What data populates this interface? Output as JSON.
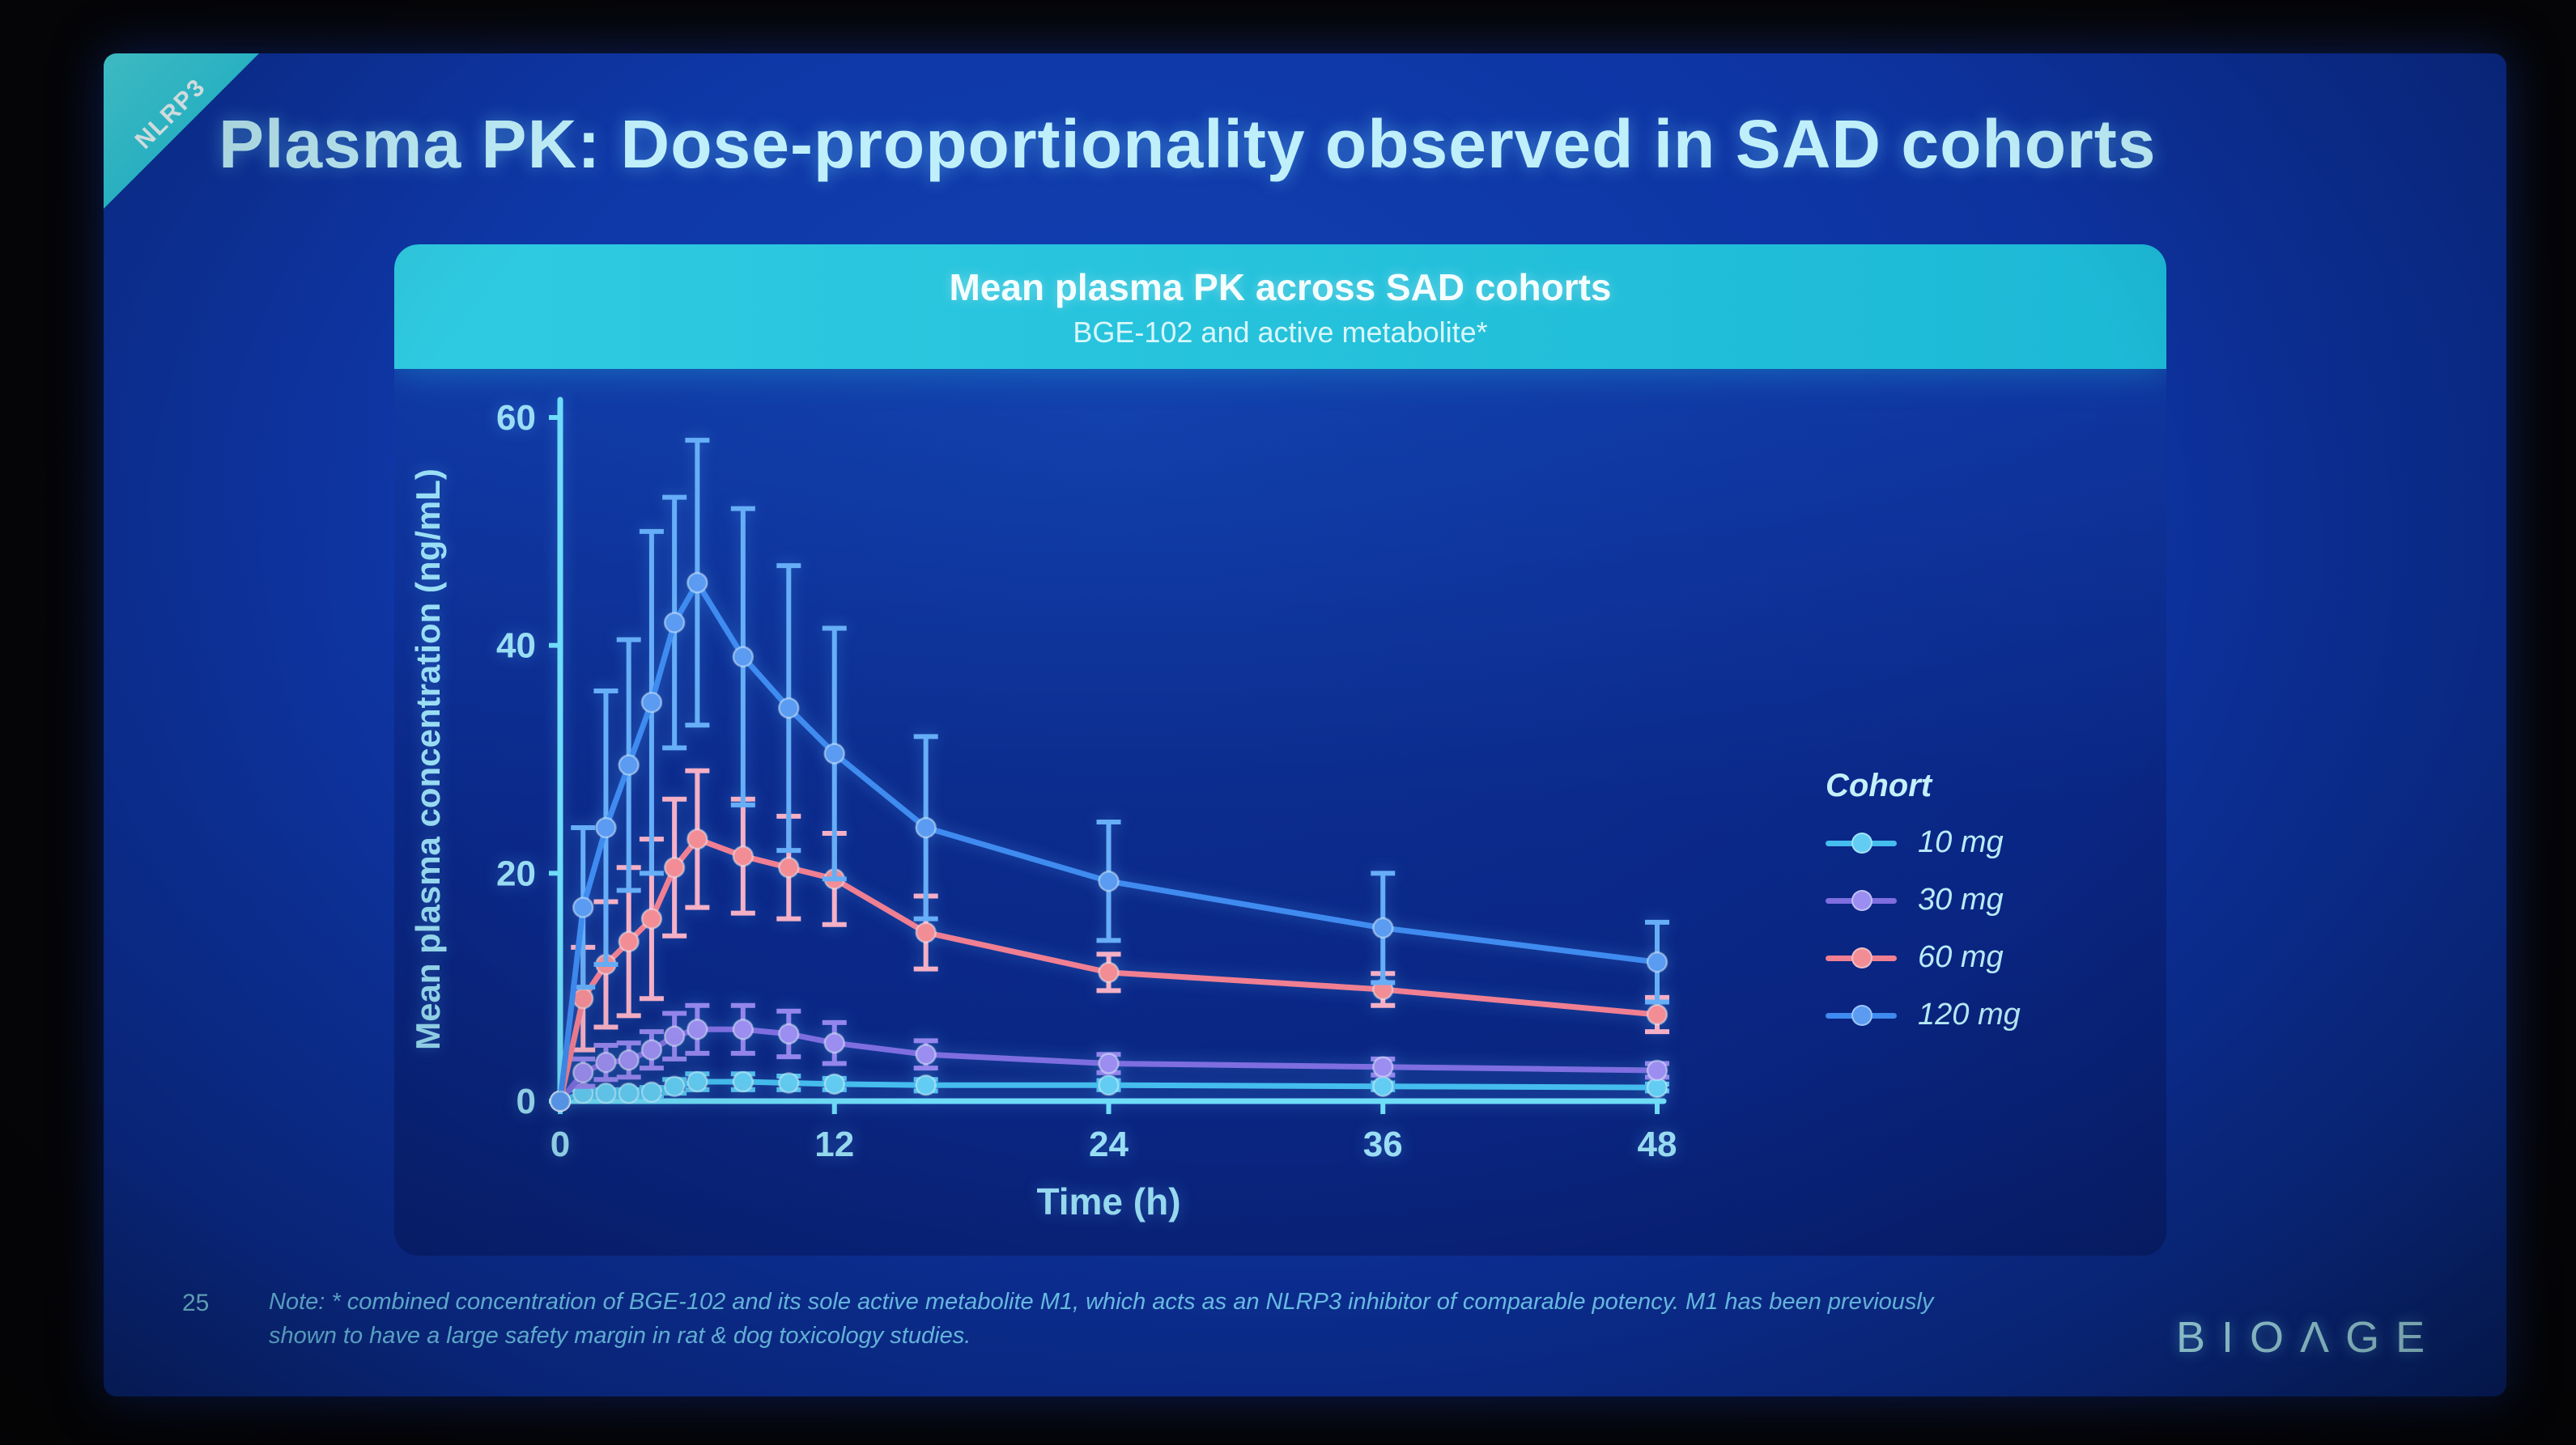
{
  "ribbon": {
    "label": "NLRP3"
  },
  "slide": {
    "title": "Plasma PK: Dose-proportionality observed in SAD cohorts",
    "page_number": "25"
  },
  "card": {
    "title": "Mean plasma PK across SAD cohorts",
    "subtitle": "BGE-102 and active metabolite*"
  },
  "footer": {
    "note_line1": "Note: * combined concentration of BGE-102 and its sole active metabolite M1, which acts as an NLRP3 inhibitor of comparable potency. M1 has been previously",
    "note_line2": "shown to have a large safety margin in rat & dog toxicology studies.",
    "logo_text": "BIOΛGE"
  },
  "chart_data": {
    "type": "line",
    "title": "Mean plasma PK across SAD cohorts",
    "subtitle": "BGE-102 and active metabolite*",
    "xlabel": "Time (h)",
    "ylabel": "Mean plasma concentration (ng/mL)",
    "xlim": [
      0,
      48
    ],
    "ylim": [
      0,
      60
    ],
    "xticks": [
      0,
      12,
      24,
      36,
      48
    ],
    "yticks": [
      0,
      20,
      40,
      60
    ],
    "grid": false,
    "legend_title": "Cohort",
    "legend_position": "right",
    "error_bars": true,
    "x": [
      0,
      1,
      2,
      3,
      4,
      5,
      6,
      8,
      10,
      12,
      16,
      24,
      36,
      48
    ],
    "series": [
      {
        "name": "10 mg",
        "color": "#45bdee",
        "marker_color": "#63ccf2",
        "error_color": "#55c2ef",
        "values": [
          0,
          0.7,
          0.7,
          0.7,
          0.8,
          1.3,
          1.7,
          1.7,
          1.6,
          1.5,
          1.4,
          1.4,
          1.3,
          1.2
        ],
        "errors": [
          0,
          0.3,
          0.3,
          0.3,
          0.4,
          0.6,
          0.7,
          0.7,
          0.6,
          0.5,
          0.5,
          0.4,
          0.3,
          0.3
        ]
      },
      {
        "name": "30 mg",
        "color": "#7e6ee0",
        "marker_color": "#9c8ef0",
        "error_color": "#9486ec",
        "values": [
          0,
          2.5,
          3.4,
          3.6,
          4.5,
          5.7,
          6.3,
          6.3,
          5.9,
          5.1,
          4.1,
          3.3,
          3.0,
          2.7
        ],
        "errors": [
          0,
          1.2,
          1.5,
          1.5,
          1.6,
          2.0,
          2.1,
          2.1,
          2.0,
          1.8,
          1.2,
          0.8,
          0.7,
          0.6
        ]
      },
      {
        "name": "60 mg",
        "color": "#f07f92",
        "marker_color": "#f28d96",
        "error_color": "#f5b0c6",
        "values": [
          0,
          9,
          12,
          14,
          16,
          20.5,
          23,
          21.5,
          20.5,
          19.5,
          14.8,
          11.3,
          9.8,
          7.6
        ],
        "errors": [
          0,
          4.5,
          5.5,
          6.5,
          7,
          6,
          6,
          5,
          4.5,
          4,
          3.2,
          1.6,
          1.4,
          1.5
        ]
      },
      {
        "name": "120 mg",
        "color": "#3f8bf0",
        "marker_color": "#5b9cf2",
        "error_color": "#66aef7",
        "values": [
          0,
          17,
          24,
          29.5,
          35,
          42,
          45.5,
          39,
          34.5,
          30.5,
          24,
          19.3,
          15.2,
          12.2
        ],
        "errors": [
          0,
          7,
          12,
          11,
          15,
          11,
          12.5,
          13,
          12.5,
          11,
          8,
          5.2,
          4.8,
          3.5
        ]
      }
    ]
  }
}
